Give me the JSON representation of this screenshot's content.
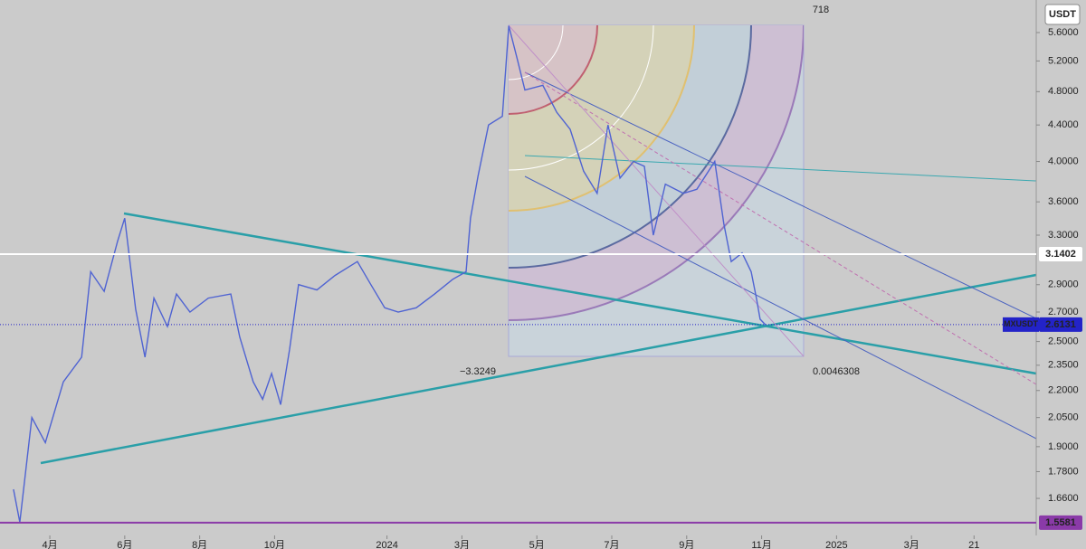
{
  "chart_data": {
    "type": "line",
    "currency": "USDT",
    "x": [
      -0.97,
      -0.8,
      -0.48,
      -0.12,
      0.36,
      0.85,
      1.09,
      1.45,
      1.81,
      2.0,
      2.29,
      2.54,
      2.78,
      3.14,
      3.38,
      3.74,
      4.23,
      4.83,
      5.07,
      5.43,
      5.68,
      5.92,
      6.16,
      6.4,
      6.64,
      7.13,
      7.61,
      8.21,
      8.57,
      8.94,
      9.3,
      9.78,
      10.27,
      10.75,
      11.11,
      11.23,
      11.43,
      11.71,
      12.08,
      12.25,
      12.49,
      12.68,
      13.16,
      13.53,
      13.89,
      14.25,
      14.61,
      14.9,
      15.22,
      15.58,
      15.87,
      16.11,
      16.43,
      16.91,
      17.27,
      17.75,
      17.99,
      18.19,
      18.48,
      18.72,
      18.86,
      18.96,
      19.11
    ],
    "series": [
      {
        "name": "MXUSDT",
        "color": "#4f63d2",
        "values": [
          1.7,
          1.56,
          2.05,
          1.92,
          2.25,
          2.4,
          3.0,
          2.85,
          3.25,
          3.45,
          2.72,
          2.4,
          2.8,
          2.6,
          2.83,
          2.7,
          2.8,
          2.83,
          2.53,
          2.25,
          2.15,
          2.3,
          2.12,
          2.45,
          2.9,
          2.86,
          2.97,
          3.08,
          2.9,
          2.73,
          2.7,
          2.73,
          2.83,
          2.94,
          3.0,
          3.45,
          3.85,
          4.4,
          4.5,
          5.7,
          5.2,
          4.82,
          4.88,
          4.55,
          4.35,
          3.9,
          3.68,
          4.4,
          3.83,
          4.0,
          3.95,
          3.3,
          3.77,
          3.68,
          3.72,
          4.0,
          3.4,
          3.08,
          3.15,
          3.0,
          2.8,
          2.65,
          2.61
        ]
      }
    ],
    "xlim": [
      -1.33,
      26.33
    ],
    "ylim": [
      1.507,
      6.097
    ],
    "log_y": true,
    "yticks": [
      {
        "value": 5.6,
        "label": "5.6000"
      },
      {
        "value": 5.2,
        "label": "5.2000"
      },
      {
        "value": 4.8,
        "label": "4.8000"
      },
      {
        "value": 4.4,
        "label": "4.4000"
      },
      {
        "value": 4.0,
        "label": "4.0000"
      },
      {
        "value": 3.6,
        "label": "3.6000"
      },
      {
        "value": 3.3,
        "label": "3.3000"
      },
      {
        "value": 2.9,
        "label": "2.9000"
      },
      {
        "value": 2.7,
        "label": "2.7000"
      },
      {
        "value": 2.5,
        "label": "2.5000"
      },
      {
        "value": 2.35,
        "label": "2.3500"
      },
      {
        "value": 2.2,
        "label": "2.2000"
      },
      {
        "value": 2.05,
        "label": "2.0500"
      },
      {
        "value": 1.9,
        "label": "1.9000"
      },
      {
        "value": 1.78,
        "label": "1.7800"
      },
      {
        "value": 1.66,
        "label": "1.6600"
      }
    ],
    "xticks": [
      {
        "value": 0,
        "label": "4月"
      },
      {
        "value": 2,
        "label": "6月"
      },
      {
        "value": 4,
        "label": "8月"
      },
      {
        "value": 6,
        "label": "10月"
      },
      {
        "value": 9,
        "label": "2024"
      },
      {
        "value": 11,
        "label": "3月"
      },
      {
        "value": 13,
        "label": "5月"
      },
      {
        "value": 15,
        "label": "7月"
      },
      {
        "value": 17,
        "label": "9月"
      },
      {
        "value": 19,
        "label": "11月"
      },
      {
        "value": 21,
        "label": "2025"
      },
      {
        "value": 23,
        "label": "3月"
      },
      {
        "value": 24.67,
        "label": "21"
      }
    ],
    "price_lines": [
      {
        "value": 3.1402,
        "color": "#ffffff"
      },
      {
        "value": 2.6131,
        "color": "#2323c8"
      },
      {
        "value": 1.5581,
        "color": "#8a3aa8"
      }
    ],
    "annotations": [
      "718",
      "−3.3249",
      "0.0046308"
    ]
  }
}
